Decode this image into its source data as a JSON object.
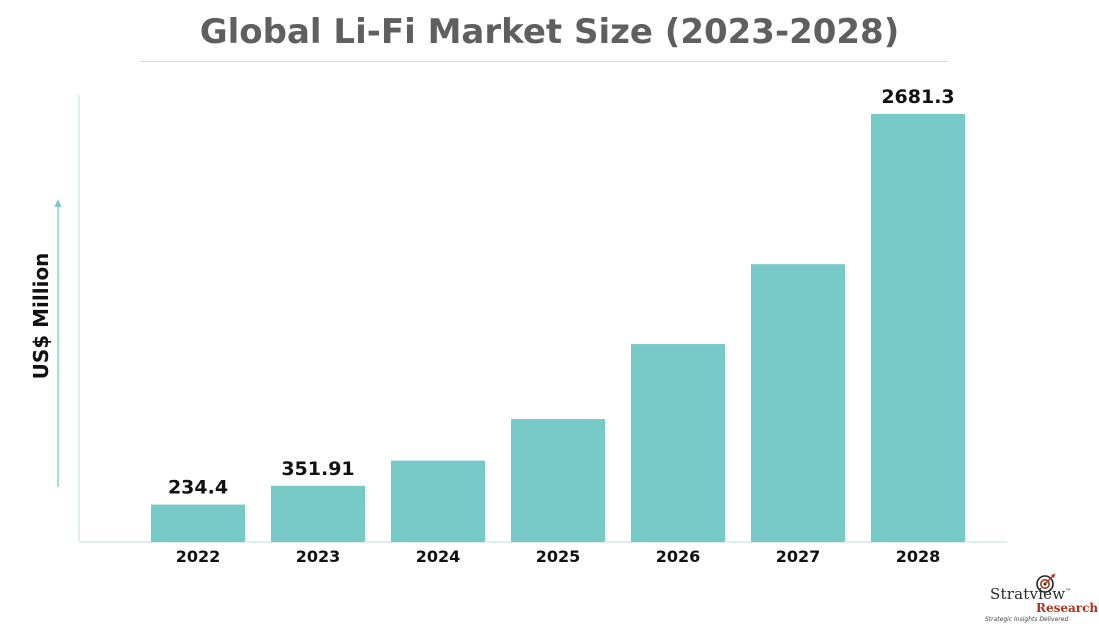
{
  "page": {
    "title": "Global Li-Fi Market Size (2023-2028)"
  },
  "brand": {
    "name": "Stratview",
    "trademark": "™",
    "sub": "Research",
    "tagline": "Strategic Insights Delivered",
    "icon": "target-arrow-logo-icon"
  },
  "colors": {
    "bar": "#77cac7",
    "axis": "#bfe1e0",
    "title": "#5f5f5f",
    "brand_red": "#b0341c"
  },
  "chart_data": {
    "type": "bar",
    "title": "Global Li-Fi Market Size (2023-2028)",
    "ylabel": "US$ Million",
    "xlabel": "",
    "categories": [
      "2022",
      "2023",
      "2024",
      "2025",
      "2026",
      "2027",
      "2028"
    ],
    "values": [
      234.4,
      351.91,
      510,
      770,
      1240,
      1740,
      2681.3
    ],
    "data_labels": [
      "234.4",
      "351.91",
      "",
      "",
      "",
      "",
      "2681.3"
    ],
    "ylim": [
      0,
      2800
    ],
    "grid": false,
    "legend": "none"
  }
}
